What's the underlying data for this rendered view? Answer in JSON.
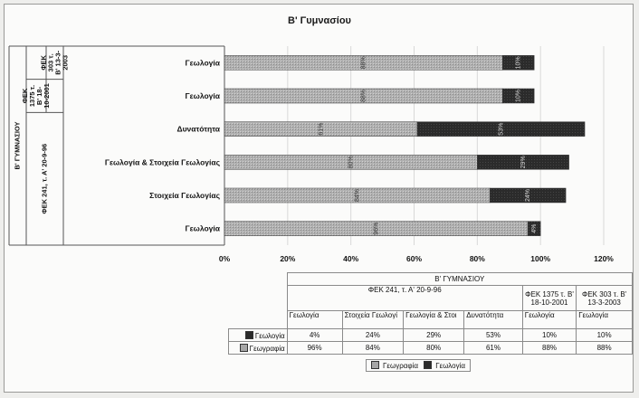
{
  "chart_data": {
    "type": "bar",
    "orientation": "horizontal",
    "stacked": true,
    "title": "Β' Γυμνασίου",
    "categories": [
      "Γεωλογία",
      "Στοιχεία Γεωλογίας",
      "Γεωλογία & Στοιχεία Γεωλογίας",
      "Δυνατότητα",
      "Γεωλογία",
      "Γεωλογία"
    ],
    "table_categories": [
      "Γεωλογία",
      "Στοιχεία Γεωλογί",
      "Γεωλογία & Στοι",
      "Δυνατότητα",
      "Γεωλογία",
      "Γεωλογία"
    ],
    "series": [
      {
        "name": "Γεωγραφία",
        "values": [
          96,
          84,
          80,
          61,
          88,
          88
        ],
        "labels": [
          "96%",
          "84%",
          "80%",
          "61%",
          "88%",
          "88%"
        ],
        "color": "#a6a6a6"
      },
      {
        "name": "Γεωλογία",
        "values": [
          4,
          24,
          29,
          53,
          10,
          10
        ],
        "labels": [
          "4%",
          "24%",
          "29%",
          "53%",
          "10%",
          "10%"
        ],
        "color": "#2b2b2b"
      }
    ],
    "xlim": [
      0,
      120
    ],
    "xticks": [
      "0%",
      "20%",
      "40%",
      "60%",
      "80%",
      "100%",
      "120%"
    ],
    "group_outer": "Β' ΓΥΜΝΑΣΙΟΥ",
    "groups": [
      {
        "label": "ΦΕΚ 241, τ. Α' 20-9-96",
        "table_label": "ΦΕΚ 241, τ.  Α' 20-9-96",
        "span": 4
      },
      {
        "label": "ΦΕΚ 1375 τ. Β' 18-10-2001",
        "span": 1
      },
      {
        "label": "ΦΕΚ 303 τ. Β' 13-3-2003",
        "span": 1
      }
    ],
    "legend_position": "bottom"
  }
}
